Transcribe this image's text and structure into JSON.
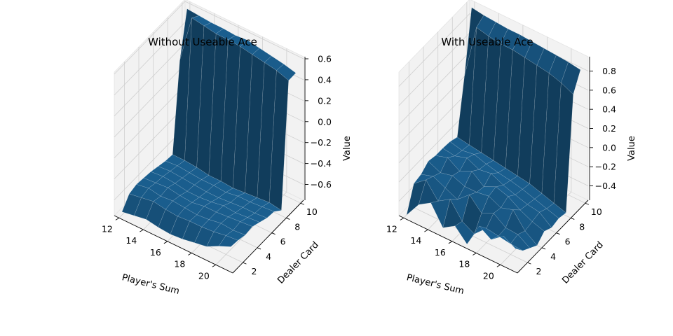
{
  "chart_data": [
    {
      "type": "surface",
      "title": "Without Useable Ace",
      "xlabel": "Player's Sum",
      "ylabel": "Dealer Card",
      "zlabel": "Value",
      "x_ticks": [
        "12",
        "14",
        "16",
        "18",
        "20"
      ],
      "y_ticks": [
        "2",
        "4",
        "6",
        "8",
        "10"
      ],
      "z_ticks": [
        "0.6",
        "0.4",
        "0.2",
        "0.0",
        "−0.2",
        "−0.4",
        "−0.6"
      ],
      "x": [
        12,
        13,
        14,
        15,
        16,
        17,
        18,
        19,
        20,
        21
      ],
      "y": [
        1,
        2,
        3,
        4,
        5,
        6,
        7,
        8,
        9,
        10
      ],
      "z": [
        [
          -0.72,
          -0.7,
          -0.68,
          -0.7,
          -0.71,
          -0.7,
          -0.68,
          -0.66,
          -0.6,
          -0.55
        ],
        [
          -0.62,
          -0.6,
          -0.58,
          -0.6,
          -0.61,
          -0.6,
          -0.6,
          -0.59,
          -0.57,
          -0.56
        ],
        [
          -0.6,
          -0.58,
          -0.6,
          -0.59,
          -0.6,
          -0.61,
          -0.6,
          -0.58,
          -0.59,
          -0.58
        ],
        [
          -0.61,
          -0.6,
          -0.59,
          -0.61,
          -0.62,
          -0.6,
          -0.6,
          -0.59,
          -0.58,
          -0.57
        ],
        [
          -0.62,
          -0.61,
          -0.62,
          -0.64,
          -0.64,
          -0.63,
          -0.61,
          -0.62,
          -0.61,
          -0.6
        ],
        [
          -0.64,
          -0.63,
          -0.64,
          -0.65,
          -0.66,
          -0.66,
          -0.65,
          -0.64,
          -0.64,
          -0.63
        ],
        [
          -0.66,
          -0.65,
          -0.66,
          -0.67,
          -0.67,
          -0.68,
          -0.66,
          -0.66,
          -0.65,
          -0.64
        ],
        [
          -0.67,
          -0.67,
          -0.68,
          -0.7,
          -0.7,
          -0.71,
          -0.7,
          -0.69,
          -0.68,
          -0.7
        ],
        [
          0.16,
          0.62,
          0.6,
          0.58,
          0.58,
          0.57,
          0.55,
          0.53,
          0.51,
          0.47
        ],
        [
          0.58,
          0.57,
          0.56,
          0.56,
          0.55,
          0.56,
          0.54,
          0.52,
          0.5,
          0.47
        ]
      ],
      "zlim": [
        -0.75,
        0.62
      ],
      "grid": true,
      "color": "#1f6fa8"
    },
    {
      "type": "surface",
      "title": "With Useable Ace",
      "xlabel": "Player's Sum",
      "ylabel": "Dealer Card",
      "zlabel": "Value",
      "x_ticks": [
        "12",
        "14",
        "16",
        "18",
        "20"
      ],
      "y_ticks": [
        "2",
        "4",
        "6",
        "8",
        "10"
      ],
      "z_ticks": [
        "0.8",
        "0.6",
        "0.4",
        "0.2",
        "0.0",
        "−0.2",
        "−0.4"
      ],
      "x": [
        12,
        13,
        14,
        15,
        16,
        17,
        18,
        19,
        20,
        21
      ],
      "y": [
        1,
        2,
        3,
        4,
        5,
        6,
        7,
        8,
        9,
        10
      ],
      "z": [
        [
          -0.55,
          -0.38,
          -0.3,
          -0.5,
          -0.42,
          -0.55,
          -0.3,
          -0.38,
          -0.28,
          -0.35
        ],
        [
          -0.3,
          -0.2,
          -0.36,
          -0.28,
          -0.45,
          -0.52,
          -0.4,
          -0.42,
          -0.44,
          -0.45
        ],
        [
          -0.28,
          -0.24,
          -0.3,
          -0.36,
          -0.25,
          -0.38,
          -0.32,
          -0.41,
          -0.42,
          -0.5
        ],
        [
          -0.22,
          -0.28,
          -0.25,
          -0.3,
          -0.3,
          -0.28,
          -0.34,
          -0.3,
          -0.46,
          -0.55
        ],
        [
          -0.24,
          -0.2,
          -0.28,
          -0.22,
          -0.32,
          -0.26,
          -0.3,
          -0.38,
          -0.44,
          -0.48
        ],
        [
          -0.24,
          -0.26,
          -0.22,
          -0.28,
          -0.26,
          -0.32,
          -0.36,
          -0.4,
          -0.42,
          -0.52
        ],
        [
          -0.25,
          -0.28,
          -0.26,
          -0.3,
          -0.33,
          -0.35,
          -0.38,
          -0.42,
          -0.46,
          -0.5
        ],
        [
          -0.28,
          -0.3,
          -0.32,
          -0.34,
          -0.36,
          -0.38,
          -0.4,
          -0.44,
          -0.48,
          -0.52
        ],
        [
          0.28,
          0.85,
          0.82,
          0.8,
          0.8,
          0.78,
          0.76,
          0.74,
          0.7,
          0.64
        ],
        [
          0.92,
          0.9,
          0.89,
          0.88,
          0.88,
          0.87,
          0.86,
          0.85,
          0.84,
          0.82
        ]
      ],
      "zlim": [
        -0.55,
        0.95
      ],
      "grid": true,
      "color": "#1f6fa8"
    }
  ]
}
